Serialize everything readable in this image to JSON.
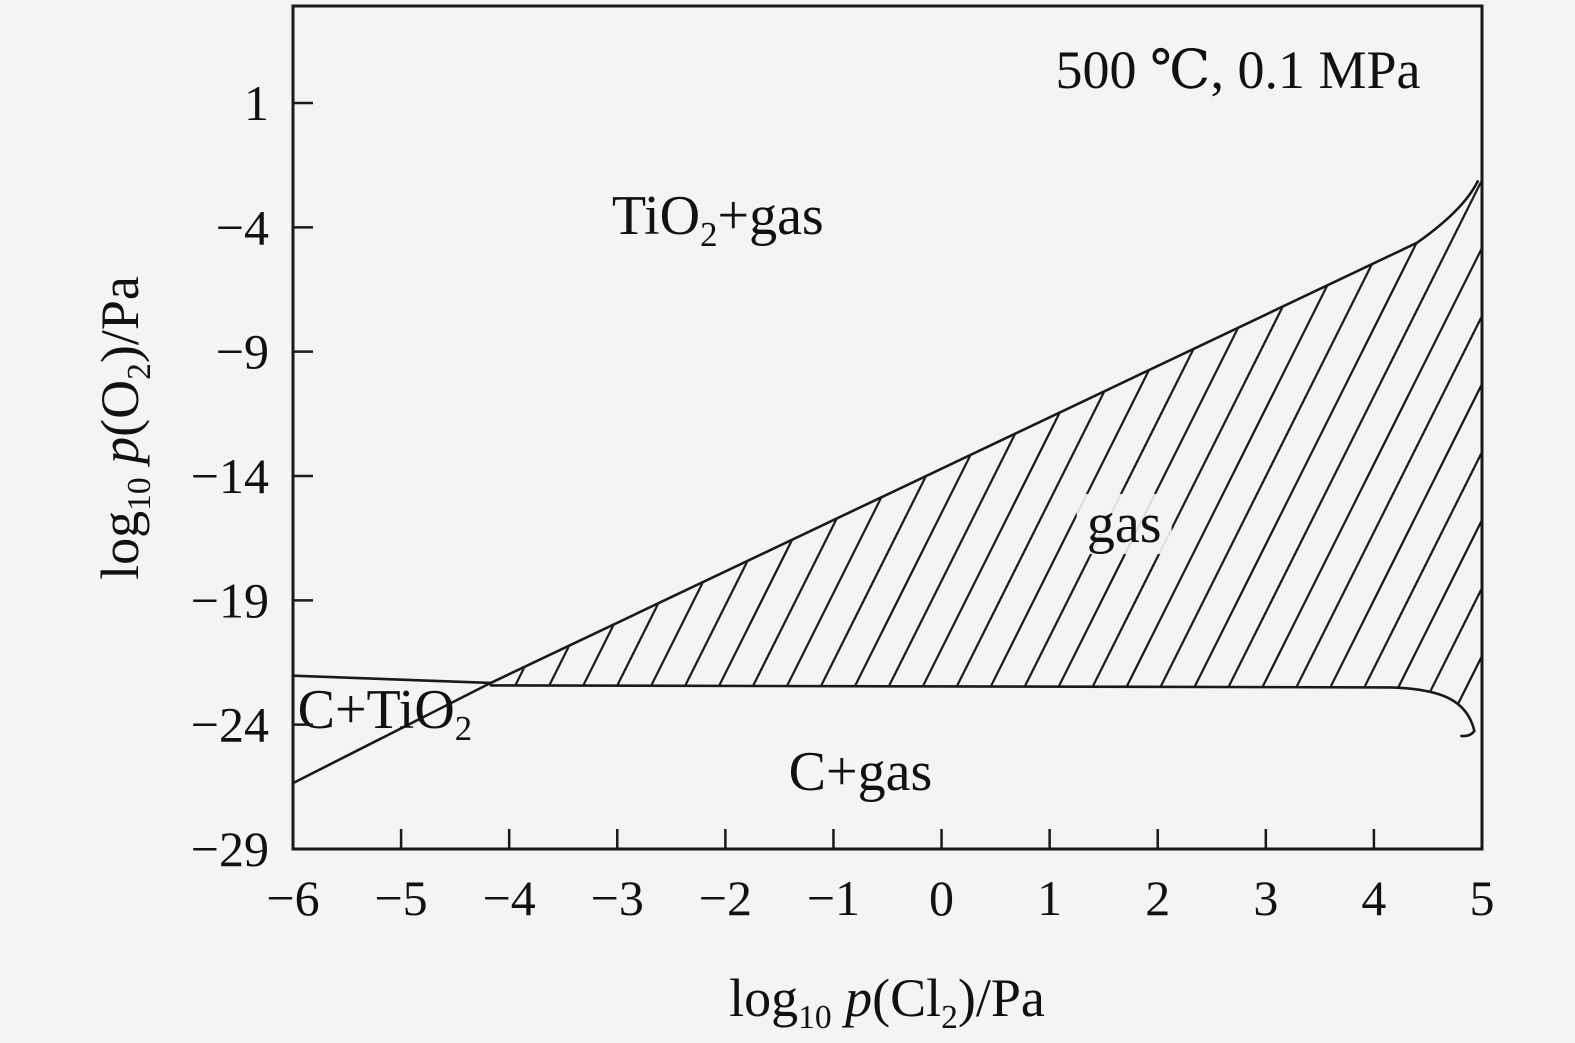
{
  "figure": {
    "background": "#f4f4f4",
    "line_color": "#1a1a1a",
    "text_color": "#111111"
  },
  "chart_data": {
    "type": "line",
    "subtype": "predominance-phase-diagram",
    "title": "",
    "annotation": "500 ℃, 0.1 MPa",
    "xlabel": "log10 p(Cl2)/Pa",
    "ylabel": "log10 p(O2)/Pa",
    "xlabel_parts": [
      {
        "t": "log"
      },
      {
        "t": "10",
        "sub": true
      },
      {
        "t": " "
      },
      {
        "t": "p",
        "italic": true
      },
      {
        "t": "(Cl"
      },
      {
        "t": "2",
        "sub": true
      },
      {
        "t": ")/Pa"
      }
    ],
    "ylabel_parts": [
      {
        "t": "log"
      },
      {
        "t": "10",
        "sub": true
      },
      {
        "t": " "
      },
      {
        "t": "p",
        "italic": true
      },
      {
        "t": "(O"
      },
      {
        "t": "2",
        "sub": true
      },
      {
        "t": ")/Pa"
      }
    ],
    "xlim": [
      -6,
      5
    ],
    "ylim": [
      -29,
      4.9
    ],
    "x_ticks": [
      -6,
      -5,
      -4,
      -3,
      -2,
      -1,
      0,
      1,
      2,
      3,
      4,
      5
    ],
    "x_tick_labels": [
      "−6",
      "−5",
      "−4",
      "−3",
      "−2",
      "−1",
      "0",
      "1",
      "2",
      "3",
      "4",
      "5"
    ],
    "y_ticks": [
      1,
      -4,
      -9,
      -14,
      -19,
      -24,
      -29
    ],
    "y_tick_labels": [
      "1",
      "−4",
      "−9",
      "−14",
      "−19",
      "−24",
      "−29"
    ],
    "grid": false,
    "legend": false,
    "regions": [
      {
        "id": "tio2-gas",
        "name": "TiO2+gas",
        "parts": [
          {
            "t": "TiO"
          },
          {
            "t": "2",
            "sub": true
          },
          {
            "t": "+gas"
          }
        ],
        "x": -2.07,
        "y": -3.55,
        "halo": false,
        "hatched": false
      },
      {
        "id": "gas",
        "name": "gas",
        "parts": [
          {
            "t": "gas"
          }
        ],
        "x": 1.69,
        "y": -15.95,
        "halo": true,
        "hatched": true
      },
      {
        "id": "c-tio2",
        "name": "C+TiO2",
        "parts": [
          {
            "t": "C+TiO"
          },
          {
            "t": "2",
            "sub": true
          }
        ],
        "x": -5.15,
        "y": -23.4,
        "halo": false,
        "hatched": false
      },
      {
        "id": "c-gas",
        "name": "C+gas",
        "parts": [
          {
            "t": "C+gas"
          }
        ],
        "x": -0.75,
        "y": -25.9,
        "halo": false,
        "hatched": false
      }
    ],
    "boundaries": [
      {
        "name": "C+TiO2 | TiO2+gas",
        "path": [
          [
            "M",
            -6,
            -22.03
          ],
          [
            "L",
            -4.17,
            -22.32
          ]
        ]
      },
      {
        "name": "C+TiO2 | C+gas",
        "path": [
          [
            "M",
            -6,
            -26.35
          ],
          [
            "L",
            -4.17,
            -22.32
          ]
        ]
      },
      {
        "name": "TiO2+gas | gas",
        "path": [
          [
            "M",
            -4.17,
            -22.32
          ],
          [
            "L",
            4.4,
            -4.62
          ],
          [
            "Q",
            4.83,
            -3.3,
            4.96,
            -2.15
          ]
        ]
      },
      {
        "name": "gas | C+gas",
        "path": [
          [
            "M",
            -4.17,
            -22.42
          ],
          [
            "L",
            4.15,
            -22.5
          ],
          [
            "C",
            4.62,
            -22.56,
            4.86,
            -23.0,
            4.93,
            -24.25
          ],
          [
            "q",
            -4,
            6,
            -13,
            5
          ]
        ]
      }
    ],
    "triple_point": [
      -4.17,
      -22.35
    ],
    "hatch": {
      "region": "gas",
      "style": "diagonal-forward-slash",
      "spacing_px": 34,
      "screen_slope": 2,
      "clip": [
        [
          "M",
          -4.17,
          -22.38
        ],
        [
          "L",
          4.4,
          -4.65
        ],
        [
          "Q",
          4.83,
          -3.3,
          4.96,
          -2.15
        ],
        [
          "L",
          5.0,
          -2.15
        ],
        [
          "L",
          5.0,
          -23.9
        ],
        [
          "L",
          4.93,
          -24.3
        ],
        [
          "C",
          4.86,
          -23.0,
          4.62,
          -22.6,
          4.15,
          -22.54
        ],
        [
          "Z"
        ]
      ]
    }
  }
}
